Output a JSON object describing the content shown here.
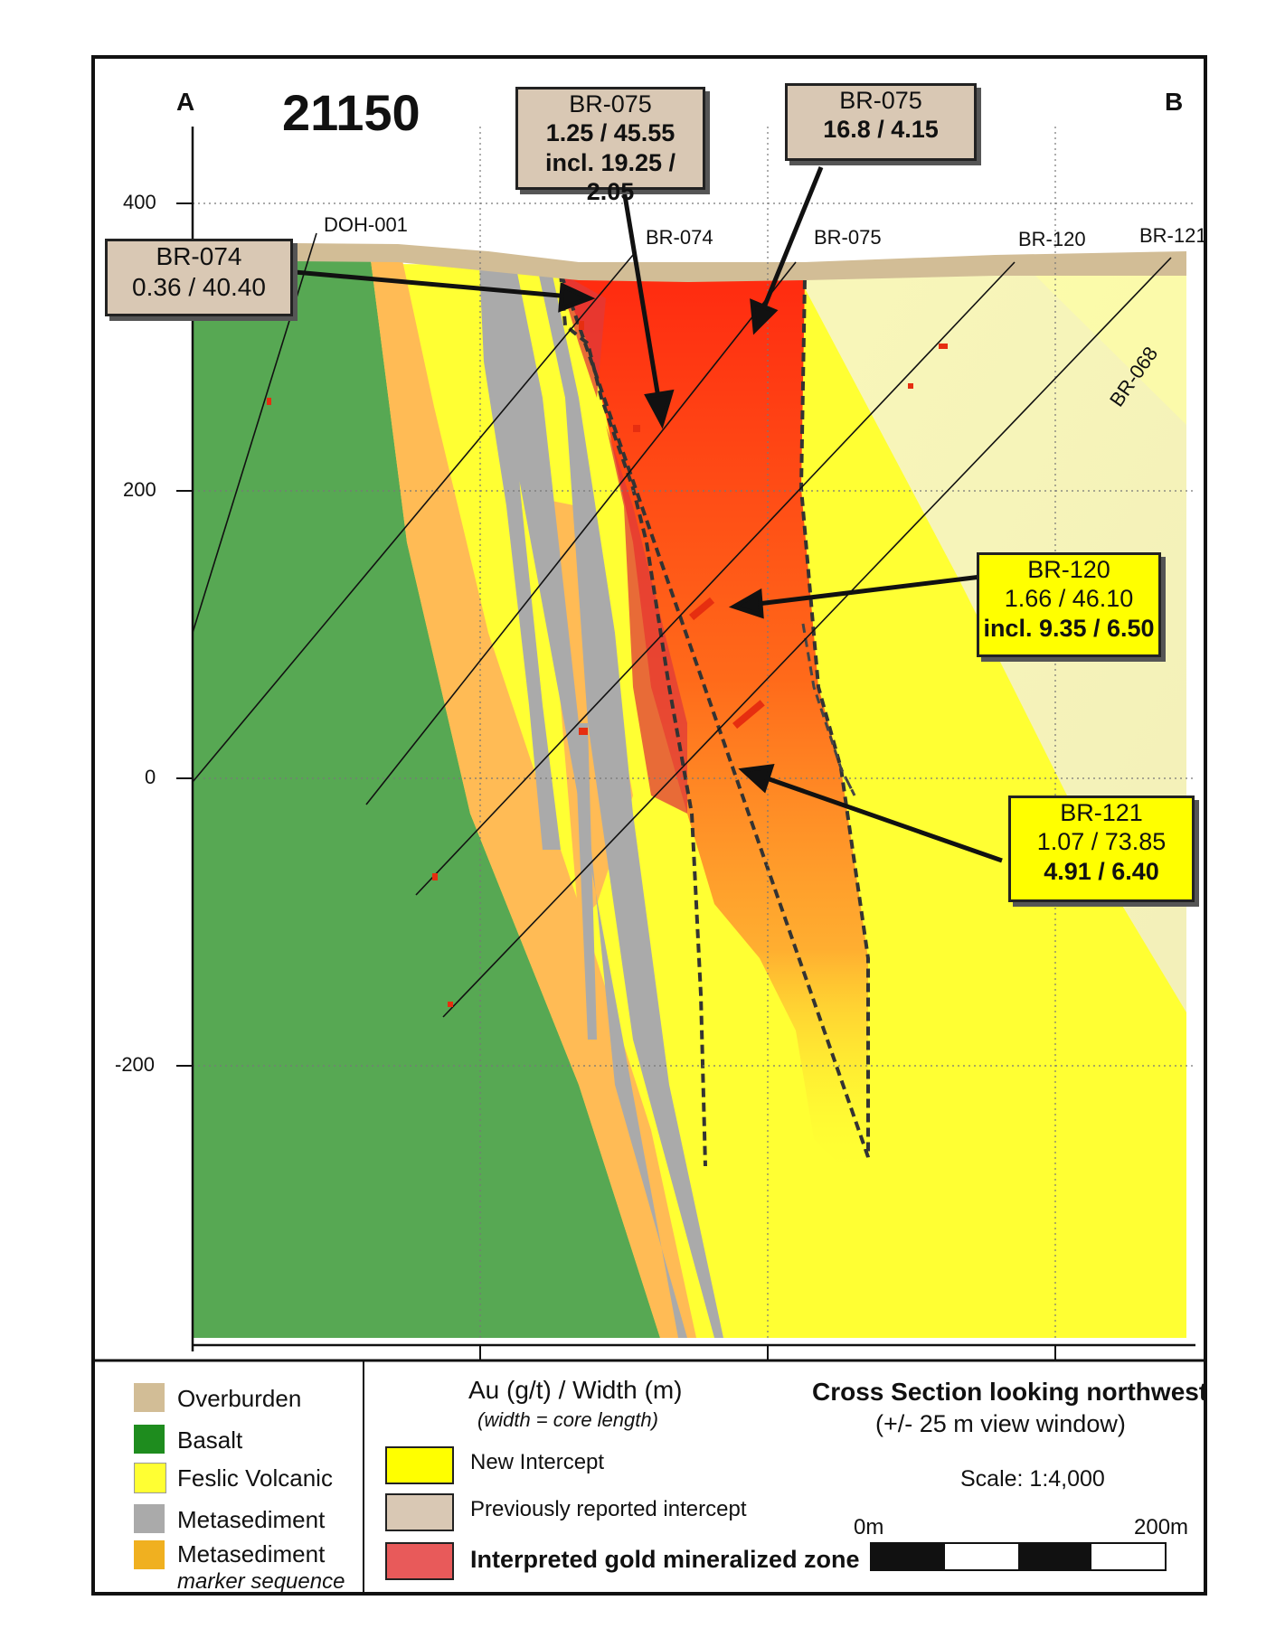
{
  "section": {
    "number": "21150",
    "end_left": "A",
    "end_right": "B"
  },
  "axis": {
    "ticks": [
      "400",
      "200",
      "0",
      "-200"
    ]
  },
  "drillholes": [
    "DOH-001",
    "BR-074",
    "BR-075",
    "BR-120",
    "BR-121",
    "BR-068"
  ],
  "callouts": {
    "br075_left": {
      "hole": "BR-075",
      "line1": "1.25 / 45.55",
      "line2": "incl. 19.25 / 2.05"
    },
    "br075_right": {
      "hole": "BR-075",
      "line1": "16.8  / 4.15"
    },
    "br074": {
      "hole": "BR-074",
      "line1": "0.36 / 40.40"
    },
    "br120": {
      "hole": "BR-120",
      "line1": "1.66 / 46.10",
      "line2": "incl. 9.35 / 6.50"
    },
    "br121": {
      "hole": "BR-121",
      "line1": "1.07 / 73.85",
      "line2": "4.91 / 6.40"
    }
  },
  "legend": {
    "lithology": [
      {
        "label": "Overburden",
        "color": "#d2bd96"
      },
      {
        "label": "Basalt",
        "color": "#1e8c1e"
      },
      {
        "label": "Feslic Volcanic",
        "color": "#ffff33"
      },
      {
        "label": "Metasediment",
        "color": "#aaaaaa"
      },
      {
        "label": "Metasediment",
        "sublabel": "marker sequence",
        "color": "#f0b020"
      }
    ],
    "au_title": "Au (g/t) / Width (m)",
    "au_subtitle": "(width = core length)",
    "intercepts": [
      {
        "label": "New Intercept",
        "color": "#ffff00"
      },
      {
        "label": "Previously reported  intercept",
        "color": "#d9c8b4"
      },
      {
        "label": "Interpreted gold mineralized zone",
        "color": "#e85a5a"
      }
    ],
    "view_title": "Cross Section looking northwest",
    "view_subtitle": "(+/- 25 m view window)",
    "scale_text": "Scale: 1:4,000",
    "scale_start": "0m",
    "scale_end": "200m"
  },
  "colors": {
    "overburden": "#d2bd96",
    "basalt": "#57a853",
    "felsic": "#ffff33",
    "metasediment": "#aaaaaa",
    "marker": "#ffbb55",
    "mineralized": "#ff3a1a",
    "previous": "#d9c8b4",
    "new": "#ffff00"
  }
}
